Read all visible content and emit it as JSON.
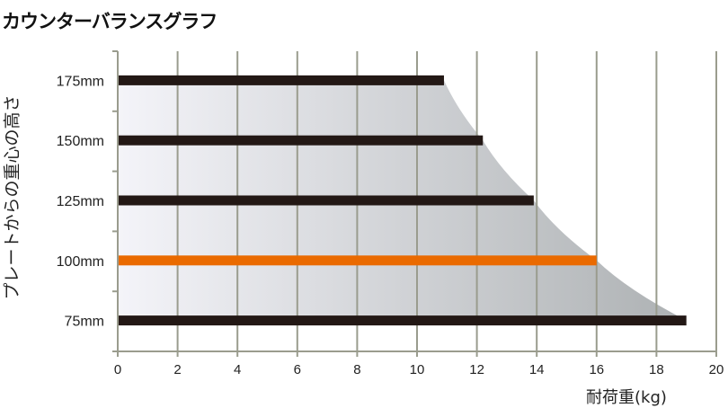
{
  "chart_data": {
    "type": "bar",
    "orientation": "horizontal",
    "title": "カウンターバランスグラフ",
    "xlabel": "耐荷重(kg)",
    "ylabel": "プレートからの重心の高さ",
    "categories": [
      "175mm",
      "150mm",
      "125mm",
      "100mm",
      "75mm"
    ],
    "values": [
      10.9,
      12.2,
      13.9,
      16,
      19
    ],
    "highlight_category": "100mm",
    "xlim": [
      0,
      20
    ],
    "xticks": [
      0,
      2,
      4,
      6,
      8,
      10,
      12,
      14,
      16,
      18,
      20
    ],
    "grid": "vertical",
    "shaded_envelope": true,
    "colors": {
      "bar": "#231815",
      "highlight": "#ea6a00",
      "grid": "#9a9c8e",
      "shade_start": "#f4f4f9",
      "shade_end": "#adb1b3"
    }
  }
}
